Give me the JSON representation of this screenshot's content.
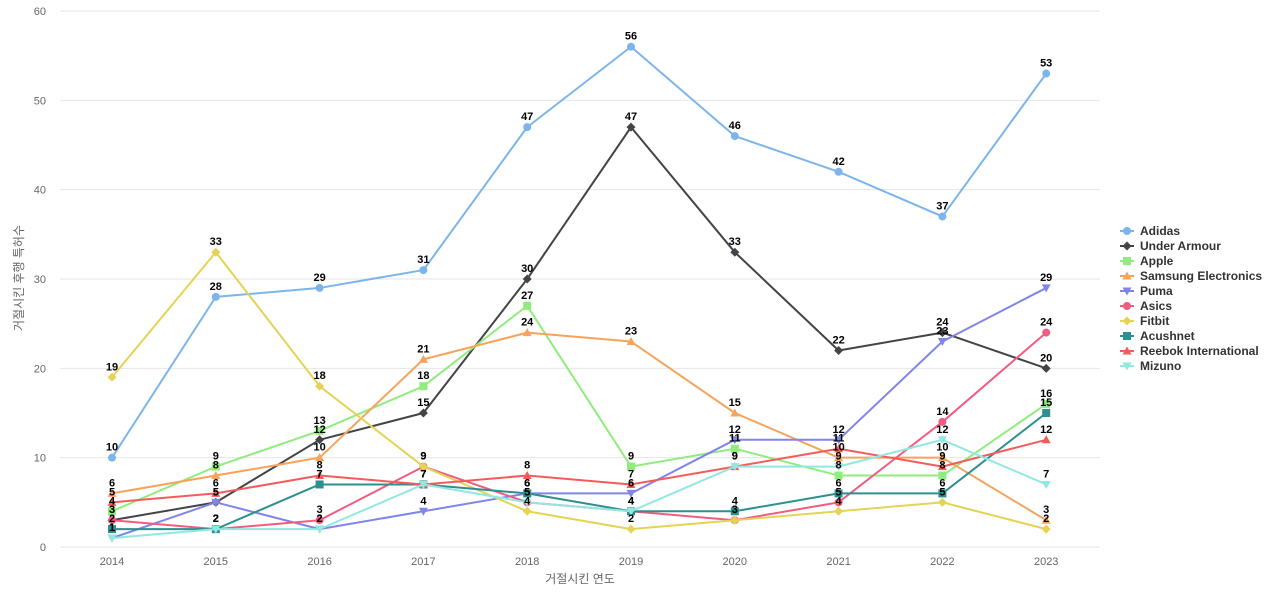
{
  "chart_data": {
    "type": "line",
    "title": "",
    "xlabel": "거절시킨 연도",
    "ylabel": "거절시킨 후행 특허수",
    "categories": [
      "2014",
      "2015",
      "2016",
      "2017",
      "2018",
      "2019",
      "2020",
      "2021",
      "2022",
      "2023"
    ],
    "ylim": [
      0,
      60
    ],
    "yticks": [
      0,
      10,
      20,
      30,
      40,
      50,
      60
    ],
    "grid": true,
    "legend_position": "right",
    "data_labels": true,
    "series": [
      {
        "name": "Adidas",
        "color": "#7cb5ec",
        "marker": "circle",
        "values": [
          10,
          28,
          29,
          31,
          47,
          56,
          46,
          42,
          37,
          53
        ]
      },
      {
        "name": "Under Armour",
        "color": "#434348",
        "marker": "diamond",
        "values": [
          3,
          5,
          12,
          15,
          30,
          47,
          33,
          22,
          24,
          20
        ]
      },
      {
        "name": "Apple",
        "color": "#90ed7d",
        "marker": "square",
        "values": [
          4,
          9,
          13,
          18,
          27,
          9,
          11,
          8,
          8,
          16
        ]
      },
      {
        "name": "Samsung Electronics",
        "color": "#f7a35c",
        "marker": "triangle",
        "values": [
          6,
          8,
          10,
          21,
          24,
          23,
          15,
          10,
          10,
          3
        ]
      },
      {
        "name": "Puma",
        "color": "#8085e9",
        "marker": "triangle-down",
        "values": [
          1,
          5,
          2,
          4,
          6,
          6,
          12,
          12,
          23,
          29
        ]
      },
      {
        "name": "Asics",
        "color": "#f15c80",
        "marker": "circle",
        "values": [
          3,
          2,
          3,
          9,
          5,
          4,
          3,
          5,
          14,
          24
        ]
      },
      {
        "name": "Fitbit",
        "color": "#e4d354",
        "marker": "diamond",
        "values": [
          19,
          33,
          18,
          9,
          4,
          2,
          3,
          4,
          5,
          2
        ]
      },
      {
        "name": "Acushnet",
        "color": "#2b908f",
        "marker": "square",
        "values": [
          2,
          2,
          7,
          7,
          6,
          4,
          4,
          6,
          6,
          15
        ]
      },
      {
        "name": "Reebok International",
        "color": "#f45b5b",
        "marker": "triangle",
        "values": [
          5,
          6,
          8,
          7,
          8,
          7,
          9,
          11,
          9,
          12
        ]
      },
      {
        "name": "Mizuno",
        "color": "#91e8e1",
        "marker": "triangle-down",
        "values": [
          1,
          2,
          2,
          7,
          5,
          4,
          9,
          9,
          12,
          7
        ]
      }
    ]
  }
}
